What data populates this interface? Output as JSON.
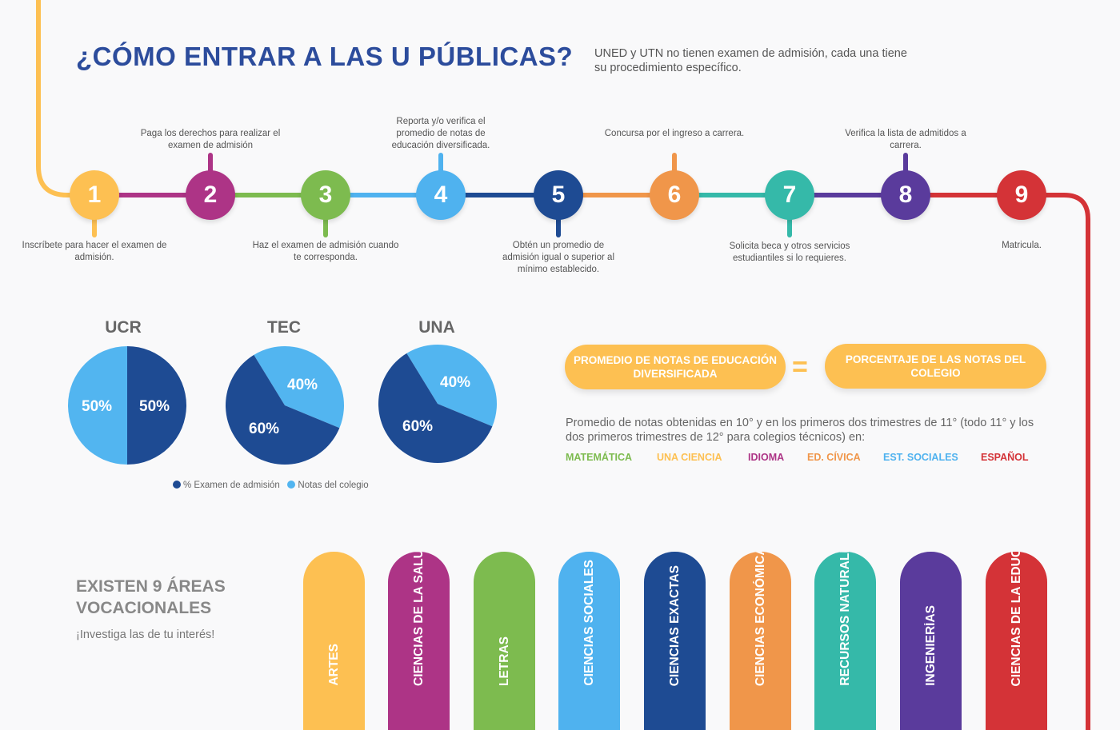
{
  "header": {
    "title": "¿CÓMO ENTRAR A LAS U PÚBLICAS?",
    "subtitle": "UNED y UTN no tienen examen de admisión, cada una tiene su procedimiento específico."
  },
  "steps": [
    {
      "number": "1",
      "text": "Inscríbete para hacer el examen de admisión.",
      "color": "#fdc052"
    },
    {
      "number": "2",
      "text": "Paga los derechos para realizar el examen de admisión",
      "color": "#ad3486"
    },
    {
      "number": "3",
      "text": "Haz el examen de admisión cuando te corresponda.",
      "color": "#7dbb4f"
    },
    {
      "number": "4",
      "text": "Reporta y/o verifica el promedio de notas de educación diversificada.",
      "color": "#4fb2ef"
    },
    {
      "number": "5",
      "text": "Obtén un promedio de admisión igual o superior al mínimo establecido.",
      "color": "#1e4b93"
    },
    {
      "number": "6",
      "text": "Concursa por el ingreso a carrera.",
      "color": "#f0964a"
    },
    {
      "number": "7",
      "text": "Solicita beca y otros servicios estudiantiles si lo requieres.",
      "color": "#35b9a9"
    },
    {
      "number": "8",
      "text": "Verifica la lista de admitidos a carrera.",
      "color": "#5a3b9c"
    },
    {
      "number": "9",
      "text": "Matricula.",
      "color": "#d43337"
    }
  ],
  "chart_data": [
    {
      "type": "pie",
      "title": "UCR",
      "labels": [
        "% Examen de admisión",
        "Notas del colegio"
      ],
      "values": [
        50,
        50
      ],
      "colors": [
        "#1e4b93",
        "#52b5f0"
      ]
    },
    {
      "type": "pie",
      "title": "TEC",
      "labels": [
        "% Examen de admisión",
        "Notas del colegio"
      ],
      "values": [
        60,
        40
      ],
      "colors": [
        "#1e4b93",
        "#52b5f0"
      ]
    },
    {
      "type": "pie",
      "title": "UNA",
      "labels": [
        "% Examen de admisión",
        "Notas del colegio"
      ],
      "values": [
        60,
        40
      ],
      "colors": [
        "#1e4b93",
        "#52b5f0"
      ]
    }
  ],
  "pie_labels": {
    "ucr": [
      "50%",
      "50%"
    ],
    "tec": [
      "60%",
      "40%"
    ],
    "una": [
      "60%",
      "40%"
    ]
  },
  "legend": {
    "exam": "% Examen de admisión",
    "school": "Notas del colegio"
  },
  "formula": {
    "left": "PROMEDIO DE NOTAS DE EDUCACIÓN DIVERSIFICADA",
    "equals": "=",
    "right": "PORCENTAJE DE LAS NOTAS DEL COLEGIO"
  },
  "average_description": "Promedio de notas obtenidas en 10° y en los primeros dos trimestres de 11° (todo 11° y los dos primeros trimestres de 12° para colegios técnicos) en:",
  "subjects": [
    {
      "name": "MATEMÁTICA",
      "color": "#7dbb4f"
    },
    {
      "name": "UNA CIENCIA",
      "color": "#fdc052"
    },
    {
      "name": "IDIOMA",
      "color": "#ad3486"
    },
    {
      "name": "ED. CÍVICA",
      "color": "#f0964a"
    },
    {
      "name": "EST. SOCIALES",
      "color": "#4fb2ef"
    },
    {
      "name": "ESPAÑOL",
      "color": "#d43337"
    }
  ],
  "areas_section": {
    "title": "EXISTEN 9 ÁREAS VOCACIONALES",
    "subtitle": "¡Investiga las de tu interés!"
  },
  "areas": [
    {
      "label": "ARTES",
      "color": "#fdc052"
    },
    {
      "label": "CIENCIAS DE LA SALUD",
      "color": "#ad3486"
    },
    {
      "label": "LETRAS",
      "color": "#7dbb4f"
    },
    {
      "label": "CIENCIAS SOCIALES",
      "color": "#4fb2ef"
    },
    {
      "label": "CIENCIAS EXACTAS",
      "color": "#1e4b93"
    },
    {
      "label": "CIENCIAS ECONÓMICAS",
      "color": "#f0964a"
    },
    {
      "label": "RECURSOS NATURALES",
      "color": "#35b9a9"
    },
    {
      "label": "INGENIERÍAS",
      "color": "#5a3b9c"
    },
    {
      "label": "CIENCIAS DE LA EDUCACIÓN",
      "color": "#d43337"
    }
  ]
}
